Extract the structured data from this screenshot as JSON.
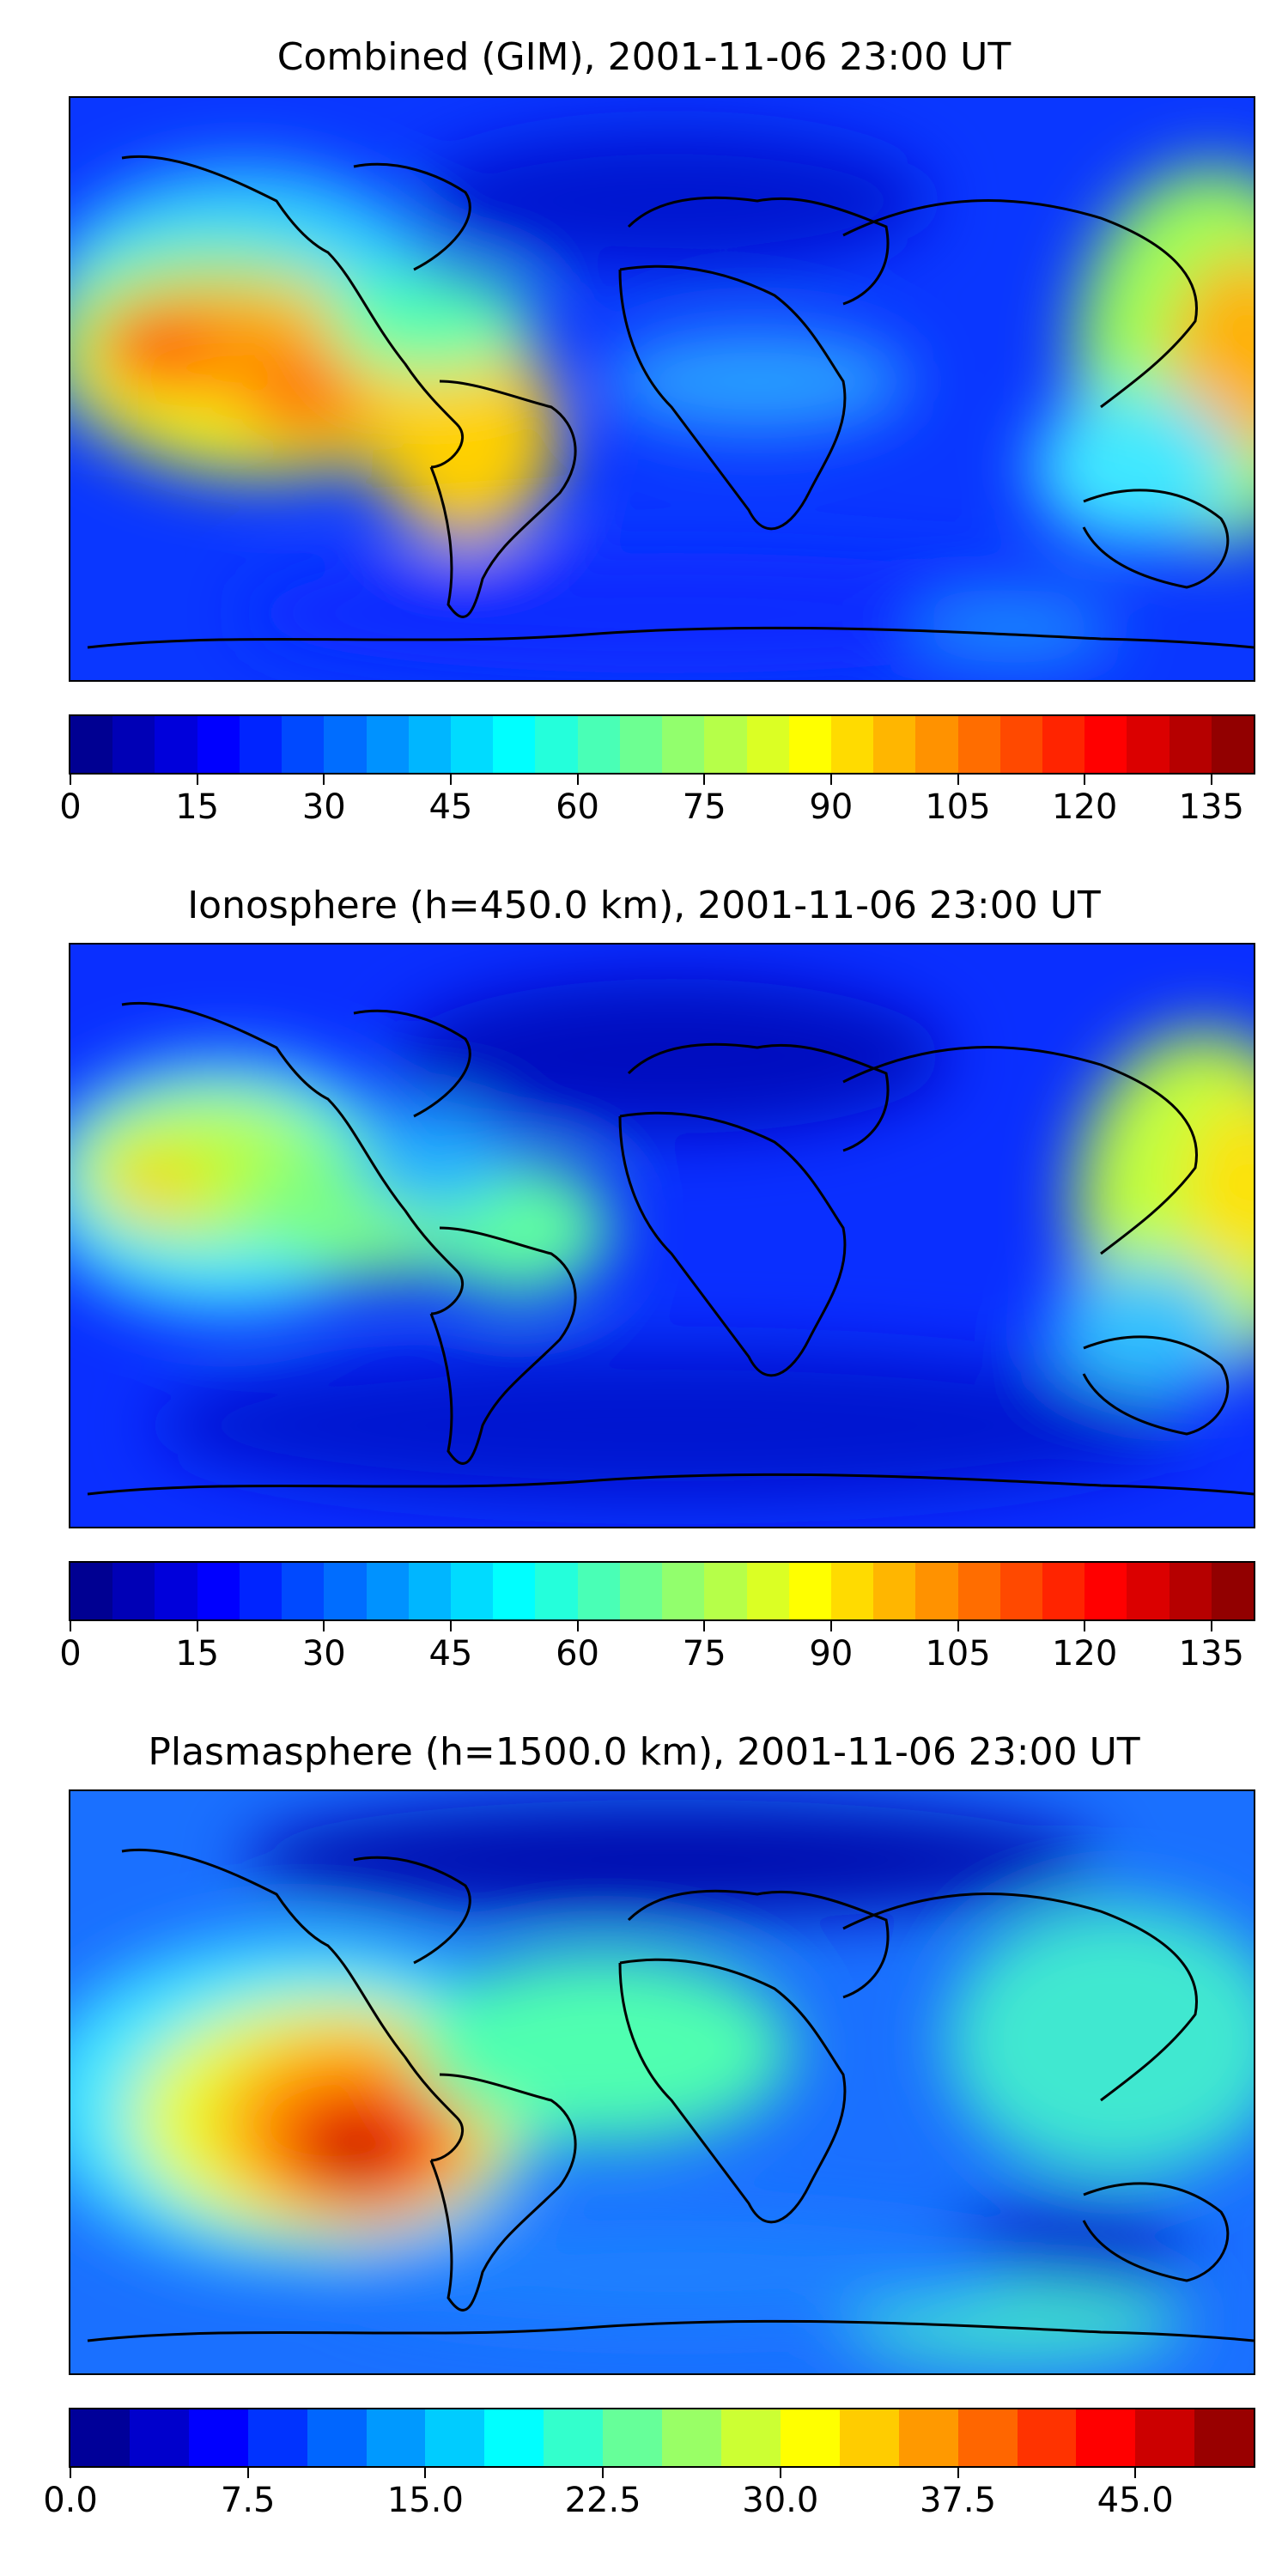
{
  "figure": {
    "panels": [
      {
        "id": "combined",
        "title": "Combined (GIM), 2001-11-06 23:00 UT",
        "colorbar": {
          "min": 0,
          "max": 140,
          "levels": 28,
          "ticks": [
            "0",
            "15",
            "30",
            "45",
            "60",
            "75",
            "90",
            "105",
            "120",
            "135"
          ],
          "tick_values": [
            0,
            15,
            30,
            45,
            60,
            75,
            90,
            105,
            120,
            135
          ]
        }
      },
      {
        "id": "ionosphere",
        "title": "Ionosphere  (h=450.0 km), 2001-11-06 23:00 UT",
        "colorbar": {
          "min": 0,
          "max": 140,
          "levels": 28,
          "ticks": [
            "0",
            "15",
            "30",
            "45",
            "60",
            "75",
            "90",
            "105",
            "120",
            "135"
          ],
          "tick_values": [
            0,
            15,
            30,
            45,
            60,
            75,
            90,
            105,
            120,
            135
          ]
        }
      },
      {
        "id": "plasmasphere",
        "title": "Plasmasphere (h=1500.0 km), 2001-11-06 23:00 UT",
        "colorbar": {
          "min": 0,
          "max": 50,
          "levels": 20,
          "ticks": [
            "0.0",
            "7.5",
            "15.0",
            "22.5",
            "30.0",
            "37.5",
            "45.0"
          ],
          "tick_values": [
            0,
            7.5,
            15,
            22.5,
            30,
            37.5,
            45
          ]
        }
      }
    ],
    "colormap": "jet"
  }
}
